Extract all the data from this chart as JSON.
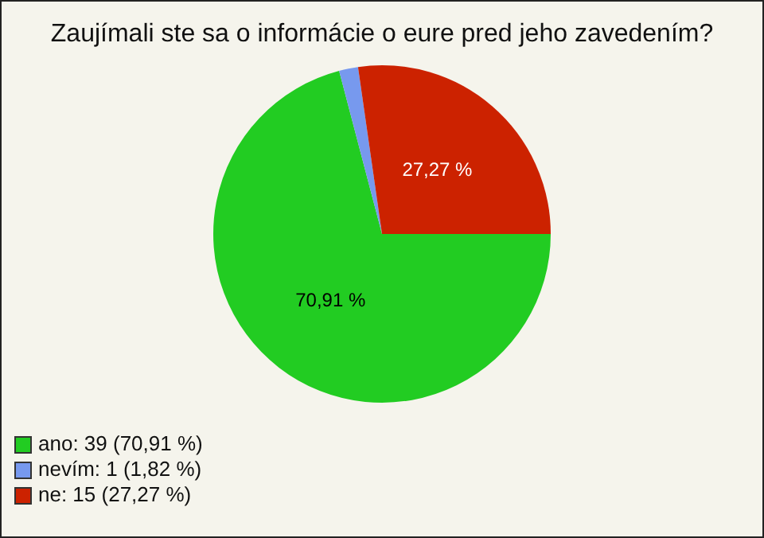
{
  "chart_data": {
    "type": "pie",
    "title": "Zaujímali ste sa o informácie o eure pred jeho zavedením?",
    "categories": [
      "ano: 39 (70,91 %)",
      "nevím: 1 (1,82 %)",
      "ne: 15 (27,27 %)"
    ],
    "values": [
      70.91,
      1.82,
      27.27
    ],
    "colors": [
      "#22cc22",
      "#7799ee",
      "#cc2200"
    ],
    "value_labels": [
      "70,91 %",
      null,
      "27,27 %"
    ],
    "legend": "bottom left"
  }
}
